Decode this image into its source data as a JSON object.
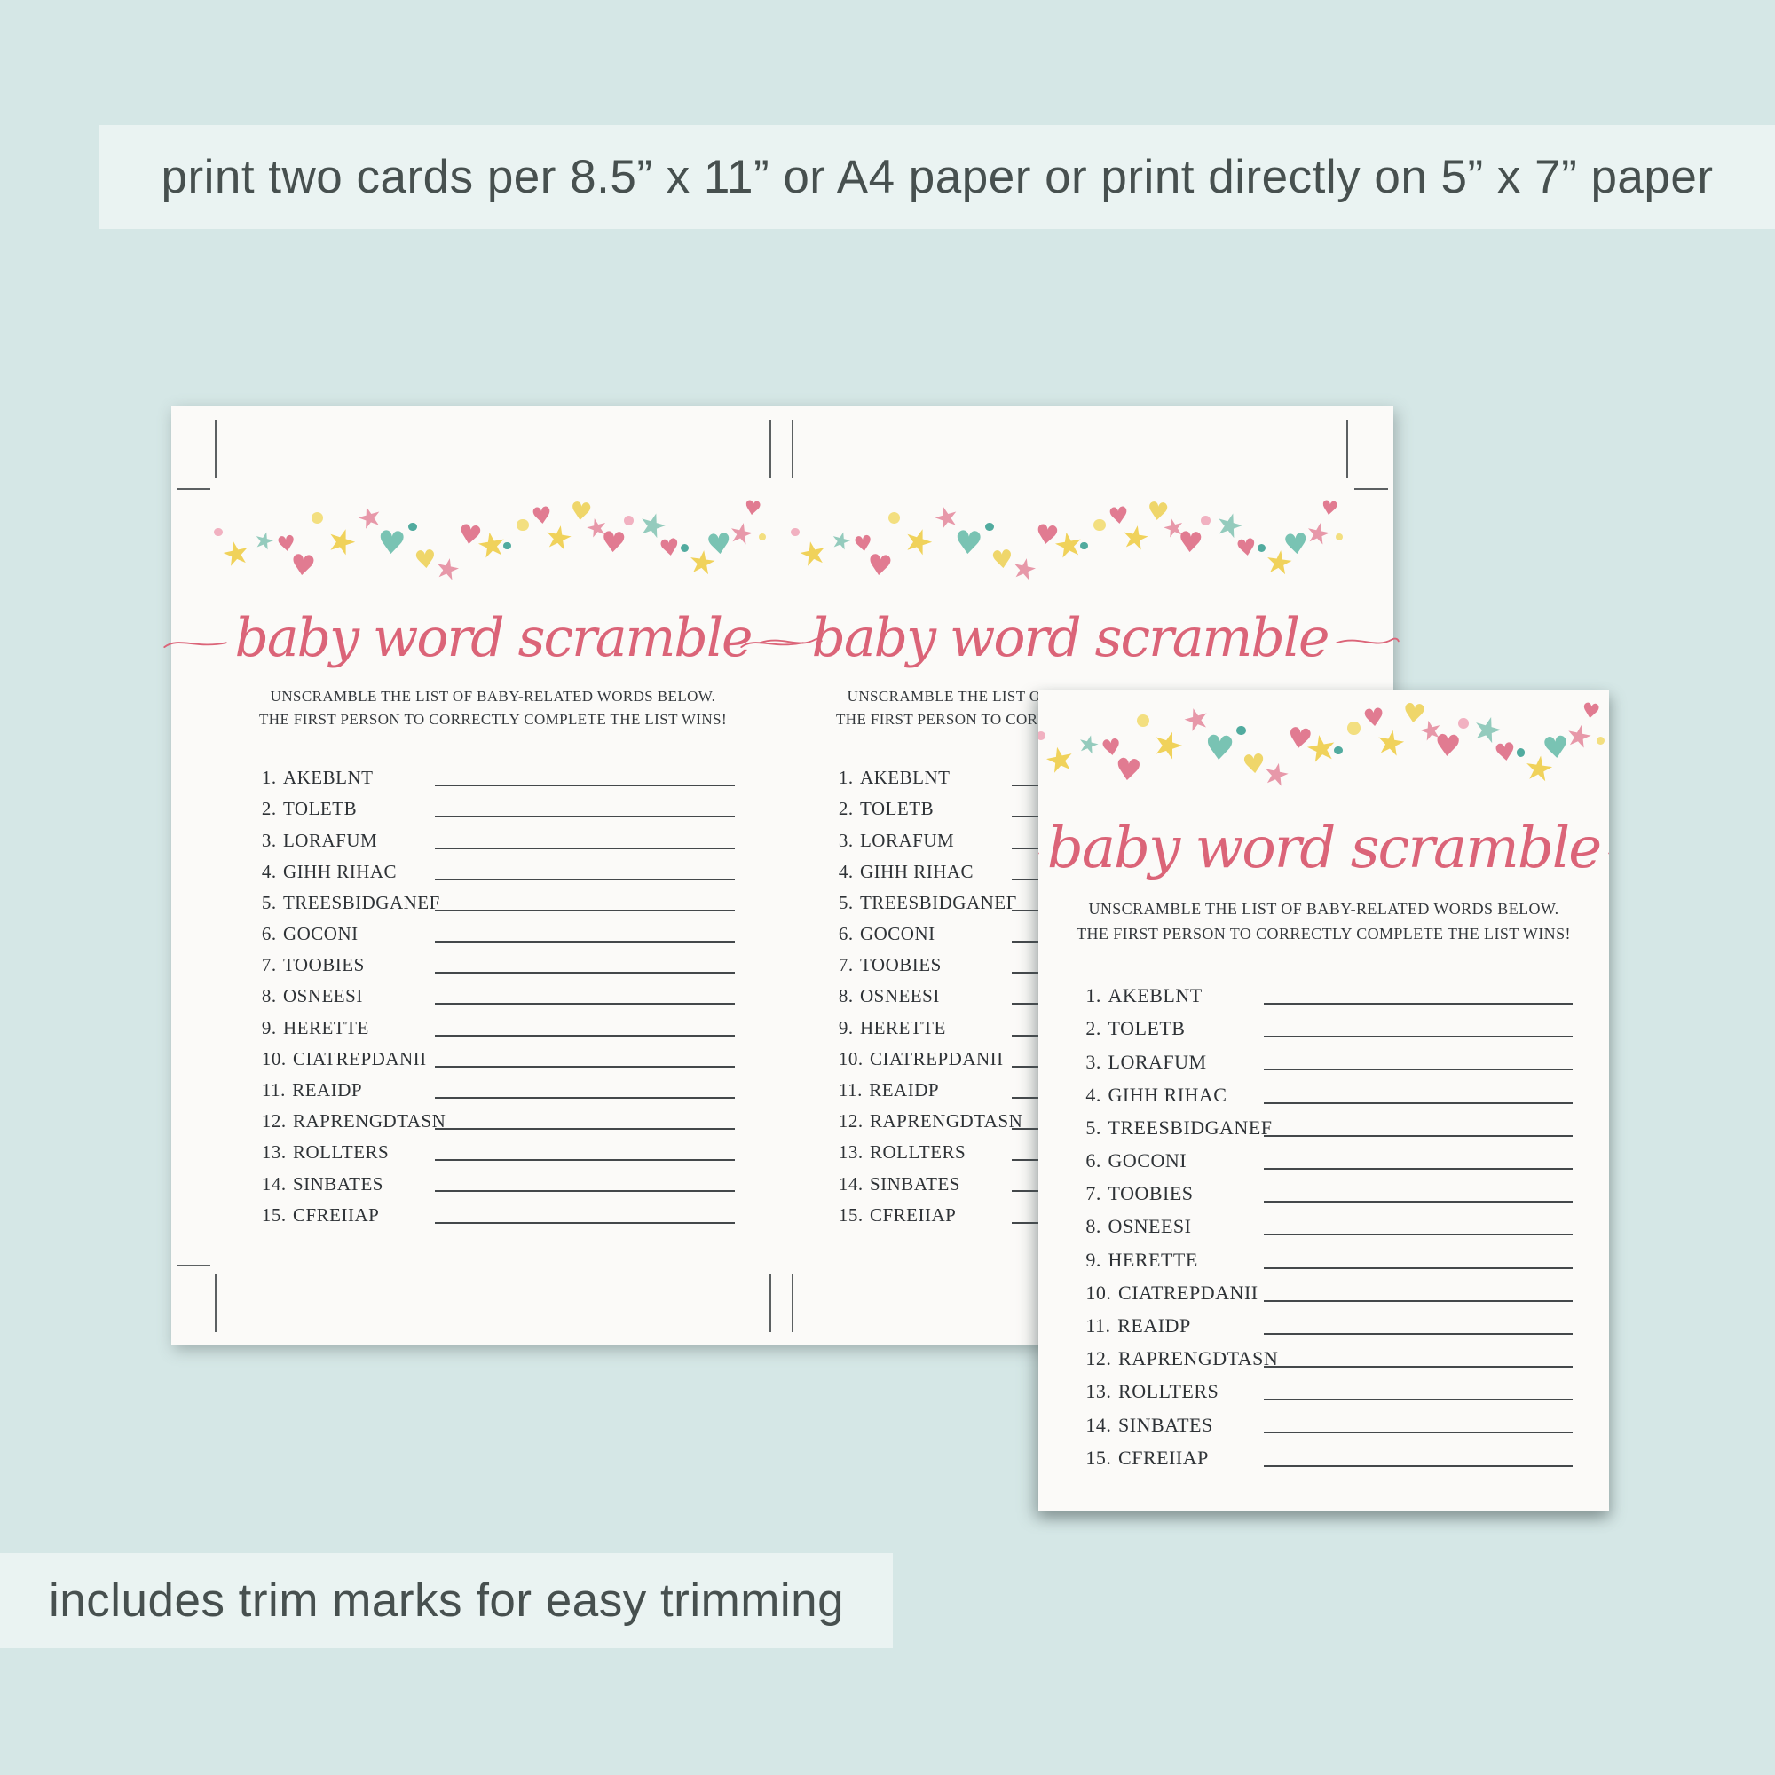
{
  "banners": {
    "top": "print two cards per 8.5” x 11” or A4 paper or print directly on 5” x 7” paper",
    "bottom": "includes trim marks for easy trimming"
  },
  "card": {
    "title": "baby word scramble",
    "subtitle_line1": "UNSCRAMBLE THE LIST OF BABY-RELATED WORDS BELOW.",
    "subtitle_line2": "THE FIRST PERSON TO CORRECTLY COMPLETE THE LIST WINS!",
    "items": [
      {
        "num": "1.",
        "word": "AKEBLNT"
      },
      {
        "num": "2.",
        "word": "TOLETB"
      },
      {
        "num": "3.",
        "word": "LORAFUM"
      },
      {
        "num": "4.",
        "word": "GIHH RIHAC"
      },
      {
        "num": "5.",
        "word": "TREESBIDGANEF"
      },
      {
        "num": "6.",
        "word": "GOCONI"
      },
      {
        "num": "7.",
        "word": "TOOBIES"
      },
      {
        "num": "8.",
        "word": "OSNEESI"
      },
      {
        "num": "9.",
        "word": "HERETTE"
      },
      {
        "num": "10.",
        "word": "CIATREPDANII"
      },
      {
        "num": "11.",
        "word": "REAIDP"
      },
      {
        "num": "12.",
        "word": "RAPRENGDTASN"
      },
      {
        "num": "13.",
        "word": "ROLLTERS"
      },
      {
        "num": "14.",
        "word": "SINBATES"
      },
      {
        "num": "15.",
        "word": "CFREIIAP"
      }
    ]
  },
  "colors": {
    "background": "#d5e7e6",
    "banner_bg": "#eaf3f2",
    "banner_text": "#47504f",
    "paper": "#fbfaf8",
    "title_pink": "#db6478",
    "subtitle_text": "#34383c",
    "list_text": "#2e3236",
    "line": "#44484b",
    "trim_mark": "#5c6062",
    "star_yellow": "#f0cf4e",
    "star_teal": "#8cc8b8",
    "star_pink": "#e690a3",
    "heart_pink": "#df7189",
    "heart_teal": "#6fbfae",
    "heart_yellow": "#eed45e",
    "dot_pink": "#efa8ba",
    "dot_teal": "#3ea295",
    "dot_yellow": "#f2db72"
  },
  "garland": [
    [
      "dot",
      "dot_pink",
      1,
      40,
      16,
      0
    ],
    [
      "star",
      "star_yellow",
      4,
      52,
      36,
      -12
    ],
    [
      "star",
      "star_teal",
      9,
      42,
      26,
      14
    ],
    [
      "heart",
      "heart_pink",
      13,
      46,
      24,
      -8
    ],
    [
      "heart",
      "heart_pink",
      16,
      66,
      32,
      6
    ],
    [
      "dot",
      "dot_yellow",
      19,
      22,
      22,
      0
    ],
    [
      "star",
      "star_yellow",
      23,
      36,
      38,
      18
    ],
    [
      "star",
      "star_pink",
      28,
      12,
      32,
      -16
    ],
    [
      "heart",
      "heart_teal",
      32,
      40,
      36,
      4
    ],
    [
      "dot",
      "dot_teal",
      36,
      34,
      16,
      0
    ],
    [
      "heart",
      "heart_yellow",
      38,
      62,
      28,
      -6
    ],
    [
      "star",
      "star_pink",
      42,
      70,
      32,
      12
    ],
    [
      "heart",
      "heart_pink",
      46,
      34,
      30,
      8
    ],
    [
      "star",
      "star_yellow",
      50,
      40,
      38,
      -10
    ],
    [
      "dot",
      "dot_teal",
      53,
      56,
      14,
      0
    ],
    [
      "dot",
      "dot_yellow",
      56,
      30,
      22,
      0
    ],
    [
      "heart",
      "heart_pink",
      59,
      14,
      26,
      -6
    ],
    [
      "star",
      "star_yellow",
      62,
      34,
      36,
      10
    ],
    [
      "heart",
      "heart_yellow",
      66,
      8,
      28,
      6
    ],
    [
      "star",
      "star_pink",
      69,
      26,
      28,
      -14
    ],
    [
      "heart",
      "heart_pink",
      72,
      40,
      32,
      4
    ],
    [
      "dot",
      "dot_pink",
      75,
      26,
      18,
      0
    ],
    [
      "star",
      "star_teal",
      79,
      20,
      36,
      16
    ],
    [
      "heart",
      "heart_pink",
      82,
      50,
      26,
      -8
    ],
    [
      "dot",
      "dot_teal",
      85,
      58,
      15,
      0
    ],
    [
      "star",
      "star_yellow",
      88,
      62,
      36,
      8
    ],
    [
      "heart",
      "heart_teal",
      91,
      42,
      32,
      -6
    ],
    [
      "star",
      "star_pink",
      95,
      30,
      32,
      12
    ],
    [
      "heart",
      "heart_pink",
      97,
      8,
      22,
      8
    ],
    [
      "dot",
      "dot_yellow",
      99,
      46,
      14,
      0
    ]
  ]
}
